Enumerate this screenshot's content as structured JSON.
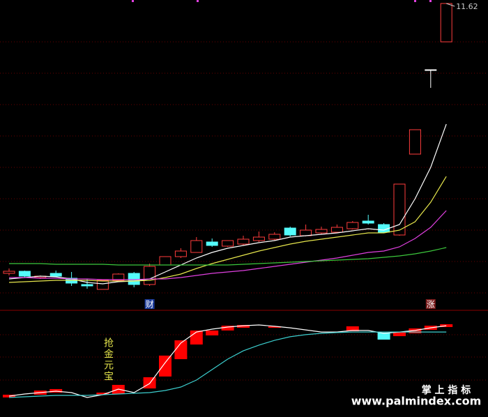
{
  "chart_data": [
    {
      "type": "candlestick",
      "ylim": [
        7.27,
        11.67
      ],
      "up_color": "#ff3c3c",
      "down_color": "#54fcfc",
      "open": [
        7.75,
        7.78,
        7.69,
        7.75,
        7.68,
        7.59,
        7.52,
        7.65,
        7.75,
        7.59,
        7.87,
        7.99,
        8.05,
        8.2,
        8.14,
        8.17,
        8.22,
        8.24,
        8.4,
        8.29,
        8.33,
        8.34,
        8.39,
        8.5,
        8.45,
        8.3,
        9.46,
        10.67,
        11.07
      ],
      "high": [
        7.82,
        7.79,
        7.72,
        7.79,
        7.77,
        7.67,
        7.65,
        7.75,
        7.77,
        7.89,
        7.99,
        8.11,
        8.27,
        8.25,
        8.22,
        8.29,
        8.35,
        8.34,
        8.42,
        8.45,
        8.42,
        8.45,
        8.5,
        8.59,
        8.47,
        9.03,
        9.81,
        10.67,
        11.62
      ],
      "low": [
        7.72,
        7.69,
        7.67,
        7.7,
        7.57,
        7.53,
        7.52,
        7.65,
        7.55,
        7.57,
        7.87,
        7.97,
        8.05,
        8.13,
        8.13,
        8.15,
        8.2,
        8.22,
        8.28,
        8.28,
        8.31,
        8.33,
        8.38,
        8.45,
        8.33,
        8.29,
        9.46,
        10.41,
        11.07
      ],
      "close": [
        7.78,
        7.71,
        7.71,
        7.71,
        7.61,
        7.57,
        7.65,
        7.74,
        7.59,
        7.85,
        7.99,
        8.07,
        8.22,
        8.15,
        8.22,
        8.24,
        8.27,
        8.31,
        8.3,
        8.37,
        8.38,
        8.41,
        8.48,
        8.47,
        8.34,
        9.03,
        9.81,
        10.67,
        11.62
      ],
      "series": [
        {
          "color": "#ffffff",
          "values": [
            7.67,
            7.69,
            7.71,
            7.7,
            7.67,
            7.62,
            7.6,
            7.63,
            7.64,
            7.67,
            7.77,
            7.87,
            7.97,
            8.05,
            8.11,
            8.15,
            8.19,
            8.22,
            8.27,
            8.29,
            8.31,
            8.33,
            8.36,
            8.39,
            8.37,
            8.45,
            8.82,
            9.27,
            9.89
          ]
        },
        {
          "color": "#e6e64c",
          "values": [
            7.62,
            7.63,
            7.64,
            7.65,
            7.65,
            7.65,
            7.64,
            7.64,
            7.64,
            7.65,
            7.69,
            7.74,
            7.82,
            7.89,
            7.95,
            8.01,
            8.07,
            8.12,
            8.17,
            8.21,
            8.24,
            8.27,
            8.3,
            8.33,
            8.33,
            8.37,
            8.49,
            8.77,
            9.14
          ]
        },
        {
          "color": "#e040e0",
          "values": [
            7.69,
            7.69,
            7.68,
            7.68,
            7.67,
            7.67,
            7.66,
            7.66,
            7.66,
            7.67,
            7.67,
            7.69,
            7.72,
            7.75,
            7.77,
            7.79,
            7.82,
            7.85,
            7.88,
            7.91,
            7.94,
            7.97,
            8.01,
            8.05,
            8.07,
            8.13,
            8.25,
            8.41,
            8.65
          ]
        },
        {
          "color": "#3cc83c",
          "values": [
            7.89,
            7.89,
            7.89,
            7.88,
            7.88,
            7.88,
            7.88,
            7.87,
            7.87,
            7.87,
            7.87,
            7.87,
            7.87,
            7.87,
            7.87,
            7.88,
            7.89,
            7.9,
            7.91,
            7.92,
            7.93,
            7.94,
            7.95,
            7.96,
            7.98,
            8.0,
            8.03,
            8.07,
            8.12
          ]
        }
      ],
      "annotations": [
        "财",
        "涨"
      ]
    },
    {
      "type": "indicator",
      "title": "抢金元宝",
      "ylim": [
        0,
        100
      ],
      "up_color": "#ff0000",
      "down_color": "#54fcfc",
      "open": [
        18.7,
        null,
        21.3,
        23.3,
        null,
        null,
        21.3,
        22,
        null,
        27.3,
        38.7,
        55.3,
        69.3,
        78,
        82.7,
        85.3,
        null,
        85.3,
        null,
        null,
        null,
        null,
        82,
        null,
        80.7,
        77.3,
        80,
        83.3,
        86
      ],
      "close": [
        21.3,
        null,
        25.3,
        26.7,
        null,
        null,
        23.3,
        30.7,
        null,
        38,
        58.7,
        73.3,
        82.7,
        82.7,
        87.3,
        88,
        null,
        86.7,
        null,
        null,
        null,
        null,
        86.7,
        null,
        74,
        81.3,
        84.7,
        87.3,
        88.7
      ],
      "series": [
        {
          "color": "#ffffff",
          "values": [
            20,
            22,
            23.3,
            24.7,
            23.3,
            18.7,
            21.3,
            26.7,
            23.3,
            32,
            52,
            70.7,
            81.3,
            84,
            86,
            87.3,
            88,
            86.7,
            85.3,
            83.3,
            81.3,
            81.3,
            82.7,
            82.7,
            80,
            81.3,
            82.7,
            85.3,
            87.3
          ]
        },
        {
          "color": "#3ccfcf",
          "values": [
            18.7,
            19.3,
            20,
            20.7,
            20.7,
            20.7,
            21.3,
            22,
            22.7,
            23.3,
            25.3,
            28.7,
            35.3,
            45.3,
            55.3,
            63.3,
            68.7,
            73.3,
            76.7,
            78.7,
            80,
            80.7,
            81.3,
            81.3,
            81.3,
            81.3,
            81.3,
            81.3,
            81.3
          ]
        }
      ]
    }
  ],
  "watermark": {
    "title": "掌 上 指 标",
    "url": "www.palmindex.com"
  }
}
